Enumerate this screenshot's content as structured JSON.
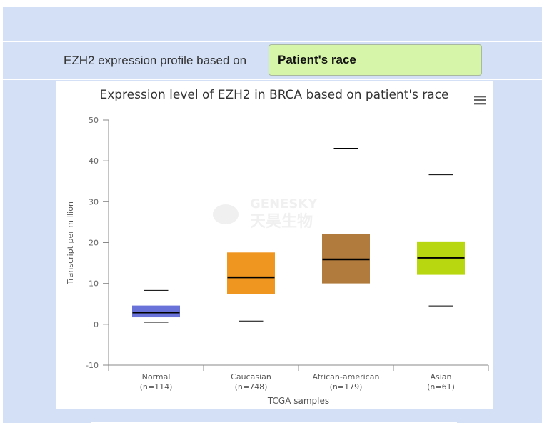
{
  "selector": {
    "label": "EZH2 expression profile based on",
    "value": "Patient's race"
  },
  "menu": {
    "icon": "hamburger-menu-icon"
  },
  "watermark": {
    "line1": "GENESKY",
    "line2": "天昊生物"
  },
  "colors": {
    "page_bg": "#d3e0f6",
    "selector_bg": "#d6f5a8",
    "median": "#000000"
  },
  "chart_data": {
    "type": "boxplot",
    "title": "Expression level of EZH2 in BRCA based on patient's race",
    "xlabel": "TCGA samples",
    "ylabel": "Transcript per million",
    "ylim": [
      -10,
      50
    ],
    "yticks": [
      "-10",
      "0",
      "10",
      "20",
      "30",
      "40",
      "50"
    ],
    "grid": false,
    "categories": [
      {
        "name": "Normal",
        "n_label": "(n=114)",
        "min": 0.5,
        "q1": 1.8,
        "median": 2.9,
        "q3": 4.5,
        "max": 8.3,
        "color": "#6872d9"
      },
      {
        "name": "Caucasian",
        "n_label": "(n=748)",
        "min": 0.8,
        "q1": 7.5,
        "median": 11.5,
        "q3": 17.5,
        "max": 36.8,
        "color": "#ef9621"
      },
      {
        "name": "African-american",
        "n_label": "(n=179)",
        "min": 1.8,
        "q1": 10.1,
        "median": 15.9,
        "q3": 22.1,
        "max": 43.1,
        "color": "#b07b3c"
      },
      {
        "name": "Asian",
        "n_label": "(n=61)",
        "min": 4.5,
        "q1": 12.2,
        "median": 16.3,
        "q3": 20.2,
        "max": 36.6,
        "color": "#b8d710"
      }
    ]
  }
}
